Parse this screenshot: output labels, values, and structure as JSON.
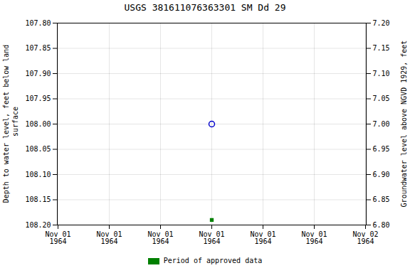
{
  "chart_data": {
    "type": "scatter",
    "title": "USGS 381611076363301 SM Dd  29",
    "ylabel": "Depth to water level, feet below land\n surface",
    "y2label": "Groundwater level above NGVD 1929, feet",
    "categories": [
      "Nov 01\n1964",
      "Nov 01\n1964",
      "Nov 01\n1964",
      "Nov 01\n1964",
      "Nov 01\n1964",
      "Nov 01\n1964",
      "Nov 02\n1964"
    ],
    "series": [
      {
        "color": "#0000cc",
        "marker": "circle",
        "values": [
          null,
          null,
          null,
          108.0,
          null,
          null,
          null
        ]
      },
      {
        "name": "Period of approved data",
        "color": "#008000",
        "marker": "square",
        "values": [
          null,
          null,
          null,
          108.19,
          null,
          null,
          null
        ]
      }
    ],
    "ylim": [
      108.2,
      107.8
    ],
    "yticks": [
      {
        "value": 107.8,
        "label": "107.80"
      },
      107.85,
      {
        "value": 107.9,
        "label": "107.90"
      },
      107.95,
      {
        "value": 108.0,
        "label": "108.00"
      },
      108.05,
      {
        "value": 108.1,
        "label": "108.10"
      },
      108.15,
      {
        "value": 108.2,
        "label": "108.20"
      }
    ],
    "y2lim": [
      6.8,
      7.2
    ],
    "y2ticks": [
      {
        "value": 6.8,
        "label": "6.80"
      },
      6.85,
      {
        "value": 6.9,
        "label": "6.90"
      },
      6.95,
      {
        "value": 7.0,
        "label": "7.00"
      },
      7.05,
      {
        "value": 7.1,
        "label": "7.10"
      },
      7.15,
      {
        "value": 7.2,
        "label": "7.20"
      }
    ],
    "grid": true,
    "legend": "bottom"
  }
}
